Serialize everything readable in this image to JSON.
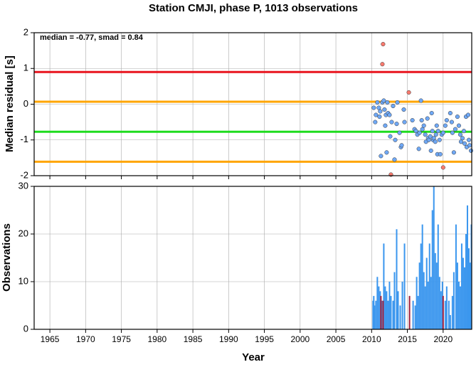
{
  "chart_data": [
    {
      "type": "scatter",
      "title": "Station CMJI, phase P, 1013 observations",
      "ylabel": "Median residual [s]",
      "annotation": "median = -0.77, smad = 0.84",
      "xlim": [
        1962.8,
        2024
      ],
      "xticks": [
        1965,
        1970,
        1975,
        1980,
        1985,
        1990,
        1995,
        2000,
        2005,
        2010,
        2015,
        2020
      ],
      "ylim": [
        -2,
        2
      ],
      "yticks": [
        -2,
        -1,
        0,
        1,
        2
      ],
      "grid": true,
      "reference_lines": [
        {
          "value": 0.9,
          "color": "#e8141e"
        },
        {
          "value": 0.07,
          "color": "#ffa500"
        },
        {
          "value": -0.77,
          "color": "#1edc1e"
        },
        {
          "value": -1.61,
          "color": "#ffa500"
        }
      ],
      "series": [
        {
          "color": "#6fa8f5",
          "x": [
            2010.3,
            2010.5,
            2010.6,
            2010.8,
            2011.0,
            2011.1,
            2011.2,
            2011.3,
            2011.5,
            2011.7,
            2011.8,
            2011.9,
            2012.0,
            2012.1,
            2012.2,
            2012.3,
            2012.5,
            2012.6,
            2012.8,
            2013.0,
            2013.2,
            2013.3,
            2013.5,
            2013.6,
            2013.9,
            2014.1,
            2014.2,
            2014.5,
            2014.6,
            2015.7,
            2016.0,
            2016.2,
            2016.4,
            2016.6,
            2016.7,
            2016.9,
            2017.0,
            2017.1,
            2017.3,
            2017.5,
            2017.6,
            2017.8,
            2017.9,
            2018.0,
            2018.2,
            2018.3,
            2018.4,
            2018.5,
            2018.6,
            2018.7,
            2018.9,
            2019.0,
            2019.1,
            2019.2,
            2019.3,
            2019.5,
            2019.6,
            2019.8,
            2020.0,
            2020.3,
            2020.5,
            2021.0,
            2021.2,
            2021.3,
            2021.5,
            2021.7,
            2022.0,
            2022.2,
            2022.4,
            2022.5,
            2022.7,
            2022.9,
            2023.0,
            2023.2,
            2023.3,
            2023.5,
            2023.6,
            2023.7,
            2023.9
          ],
          "values": [
            -0.1,
            -0.5,
            -0.3,
            0.05,
            -0.1,
            -0.35,
            -0.2,
            -1.45,
            0.05,
            0.1,
            -0.15,
            -0.6,
            -0.3,
            -1.35,
            0.05,
            -0.25,
            -0.3,
            -0.9,
            -0.5,
            -0.05,
            -1.55,
            -1.0,
            -0.55,
            0.05,
            -0.8,
            -1.2,
            -1.15,
            -0.15,
            -0.5,
            -0.45,
            -0.7,
            -0.75,
            -0.85,
            -1.25,
            -0.8,
            0.1,
            -0.45,
            -0.7,
            -0.6,
            -0.85,
            -1.05,
            -0.4,
            -0.95,
            -1.0,
            -0.9,
            -1.3,
            -0.25,
            -0.75,
            -1.0,
            -0.95,
            -1.05,
            -0.85,
            -0.6,
            -1.4,
            -0.75,
            -1.0,
            -1.4,
            -0.85,
            -0.8,
            -0.6,
            -0.45,
            -0.25,
            -0.5,
            -0.8,
            -1.35,
            -0.7,
            -0.35,
            -0.6,
            -0.85,
            -1.05,
            -0.95,
            -0.75,
            -1.1,
            -0.35,
            -1.2,
            -0.3,
            -1.0,
            -1.15,
            -1.3
          ]
        },
        {
          "color": "#f87a6e",
          "x": [
            2011.6,
            2011.5,
            2015.2,
            2012.7,
            2020.0
          ],
          "values": [
            1.68,
            1.12,
            0.33,
            -1.97,
            -1.77
          ]
        }
      ]
    },
    {
      "type": "bar",
      "xlabel": "Year",
      "ylabel": "Observations",
      "xlim": [
        1962.8,
        2024
      ],
      "xticks": [
        1965,
        1970,
        1975,
        1980,
        1985,
        1990,
        1995,
        2000,
        2005,
        2010,
        2015,
        2020
      ],
      "ylim": [
        0,
        30
      ],
      "yticks": [
        0,
        10,
        20,
        30
      ],
      "grid": true,
      "series": [
        {
          "color": "#3a96ee",
          "x": [
            2010.2,
            2010.3,
            2010.4,
            2010.6,
            2010.8,
            2011.0,
            2011.2,
            2011.4,
            2011.7,
            2011.9,
            2012.1,
            2012.3,
            2012.5,
            2012.7,
            2013.0,
            2013.2,
            2013.5,
            2013.7,
            2014.0,
            2014.3,
            2014.6,
            2015.8,
            2016.1,
            2016.3,
            2016.5,
            2016.7,
            2016.9,
            2017.1,
            2017.3,
            2017.5,
            2017.7,
            2017.9,
            2018.1,
            2018.3,
            2018.5,
            2018.7,
            2018.9,
            2019.1,
            2019.3,
            2019.5,
            2019.7,
            2019.9,
            2020.3,
            2020.5,
            2020.8,
            2021.0,
            2021.3,
            2021.5,
            2021.8,
            2022.0,
            2022.2,
            2022.4,
            2022.6,
            2022.8,
            2023.0,
            2023.2,
            2023.4,
            2023.6,
            2023.8,
            2023.95
          ],
          "values": [
            6,
            7,
            5,
            6,
            11,
            9,
            8,
            6,
            18,
            9,
            8,
            6,
            10,
            7,
            6,
            12,
            21,
            8,
            5,
            10,
            18,
            6,
            5,
            11,
            7,
            14,
            18,
            22,
            12,
            9,
            15,
            10,
            18,
            11,
            25,
            30,
            16,
            14,
            22,
            11,
            8,
            10,
            6,
            9,
            6,
            3,
            7,
            12,
            22,
            14,
            10,
            9,
            18,
            15,
            13,
            20,
            26,
            17,
            14,
            22
          ]
        },
        {
          "color": "#a0203c",
          "x": [
            2011.3,
            2011.6,
            2015.3,
            2020.0
          ],
          "values": [
            7,
            6,
            7,
            7
          ]
        }
      ]
    }
  ]
}
